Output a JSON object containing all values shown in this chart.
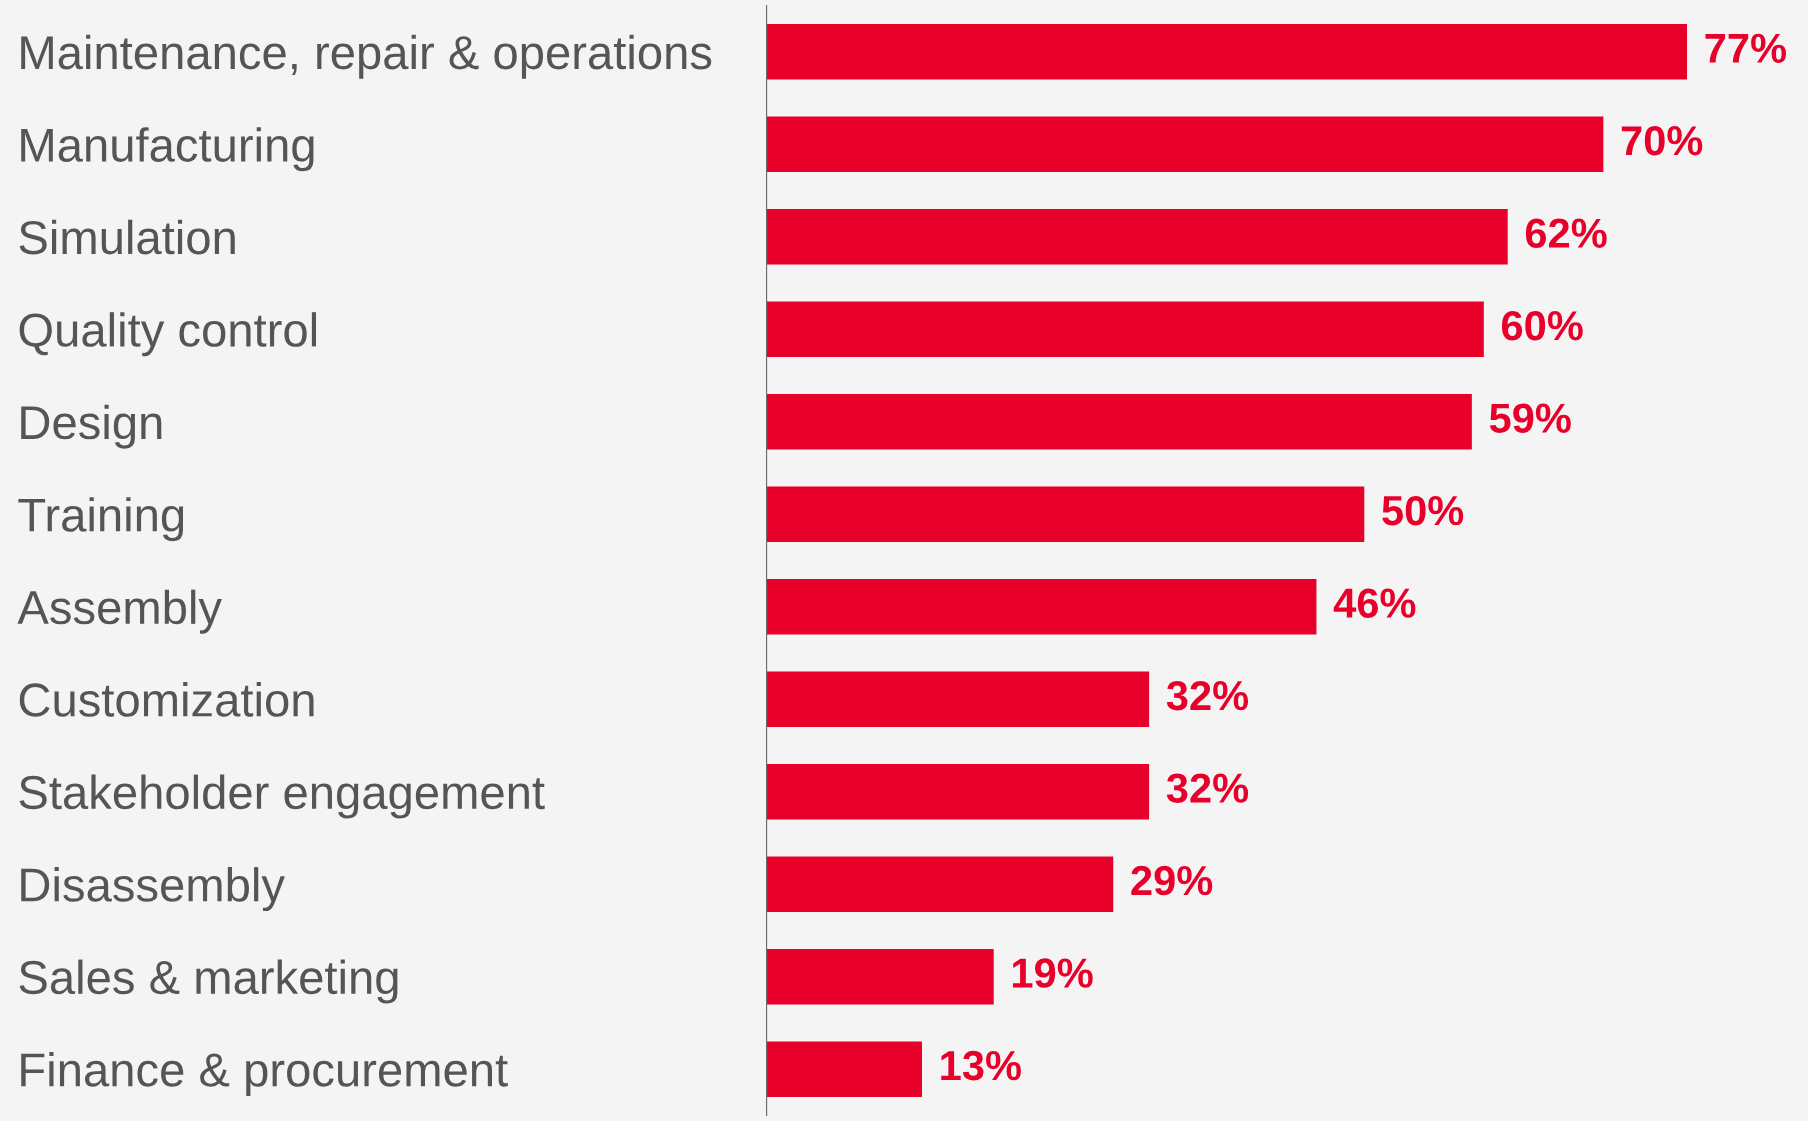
{
  "chart_data": {
    "type": "bar",
    "orientation": "horizontal",
    "categories": [
      "Maintenance, repair & operations",
      "Manufacturing",
      "Simulation",
      "Quality control",
      "Design",
      "Training",
      "Assembly",
      "Customization",
      "Stakeholder engagement",
      "Disassembly",
      "Sales & marketing",
      "Finance & procurement"
    ],
    "values": [
      77,
      70,
      62,
      60,
      59,
      50,
      46,
      32,
      32,
      29,
      19,
      13
    ],
    "value_labels": [
      "77%",
      "70%",
      "62%",
      "60%",
      "59%",
      "50%",
      "46%",
      "32%",
      "32%",
      "29%",
      "19%",
      "13%"
    ],
    "color": "#e8002a",
    "grid": false,
    "legend": false,
    "tick_labels": "y"
  }
}
